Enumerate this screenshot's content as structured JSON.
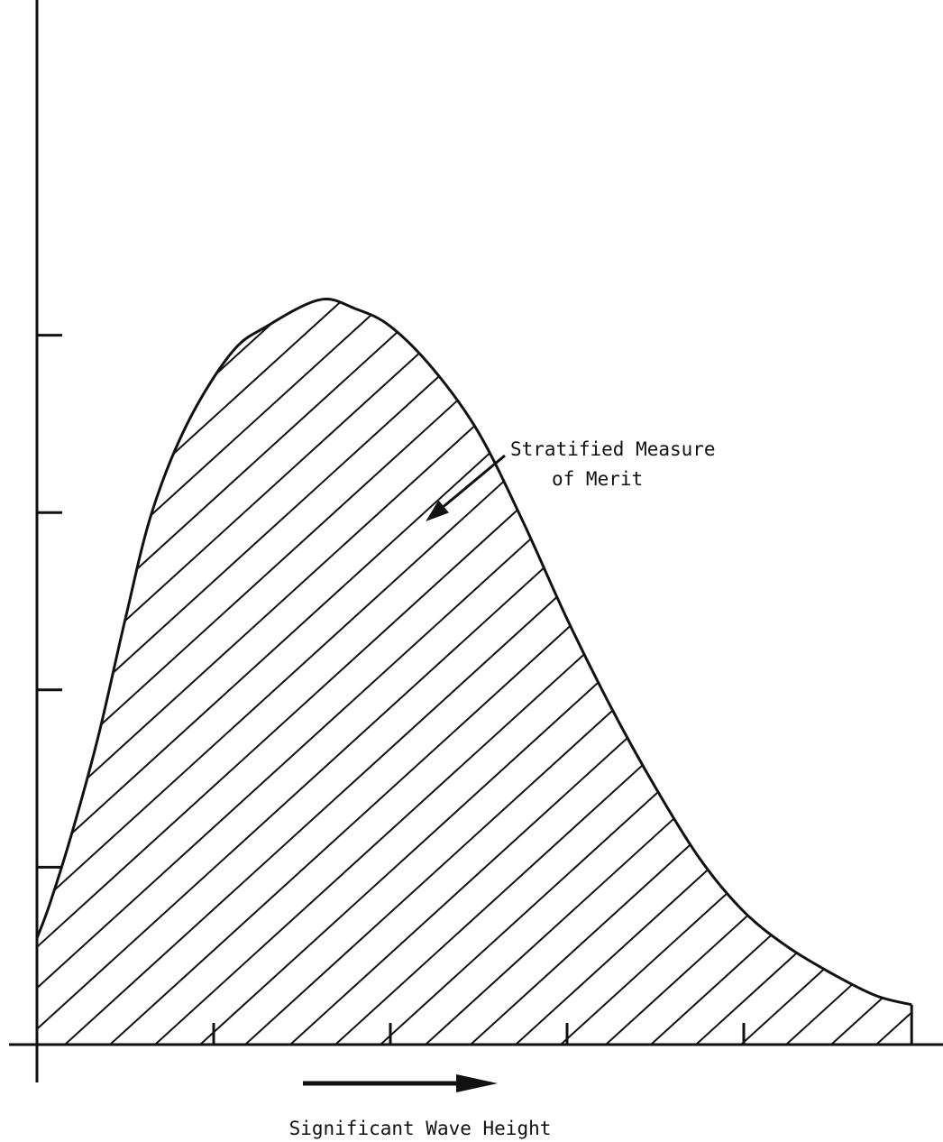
{
  "chart_data": {
    "type": "area",
    "title": "",
    "xlabel": "Significant Wave Height",
    "ylabel": "",
    "xlim": [
      0,
      10
    ],
    "ylim": [
      0,
      10
    ],
    "x_ticks": [
      2,
      4,
      6,
      8
    ],
    "y_ticks": [
      2,
      4,
      6,
      8
    ],
    "tick_labels_shown": false,
    "grid": false,
    "fill_pattern": "diagonal-hatch",
    "series": [
      {
        "x": [
          0,
          0.15,
          0.4,
          0.7,
          1.0,
          1.3,
          1.7,
          2.2,
          2.6,
          3.2,
          3.6,
          4.0,
          4.5,
          5.0,
          5.5,
          6.0,
          6.5,
          7.0,
          7.5,
          8.0,
          8.5,
          9.0,
          9.5,
          9.9
        ],
        "y": [
          1.2,
          1.6,
          2.4,
          3.5,
          4.8,
          6.0,
          7.0,
          7.8,
          8.1,
          8.4,
          8.3,
          8.1,
          7.6,
          6.9,
          5.9,
          4.8,
          3.8,
          2.9,
          2.1,
          1.5,
          1.1,
          0.8,
          0.55,
          0.45
        ]
      }
    ],
    "annotations": [
      {
        "text_line1": "Stratified Measure",
        "text_line2": "of Merit",
        "arrow_to_x": 4.4,
        "arrow_to_y": 5.9
      }
    ],
    "direction_arrow": "increasing x"
  }
}
